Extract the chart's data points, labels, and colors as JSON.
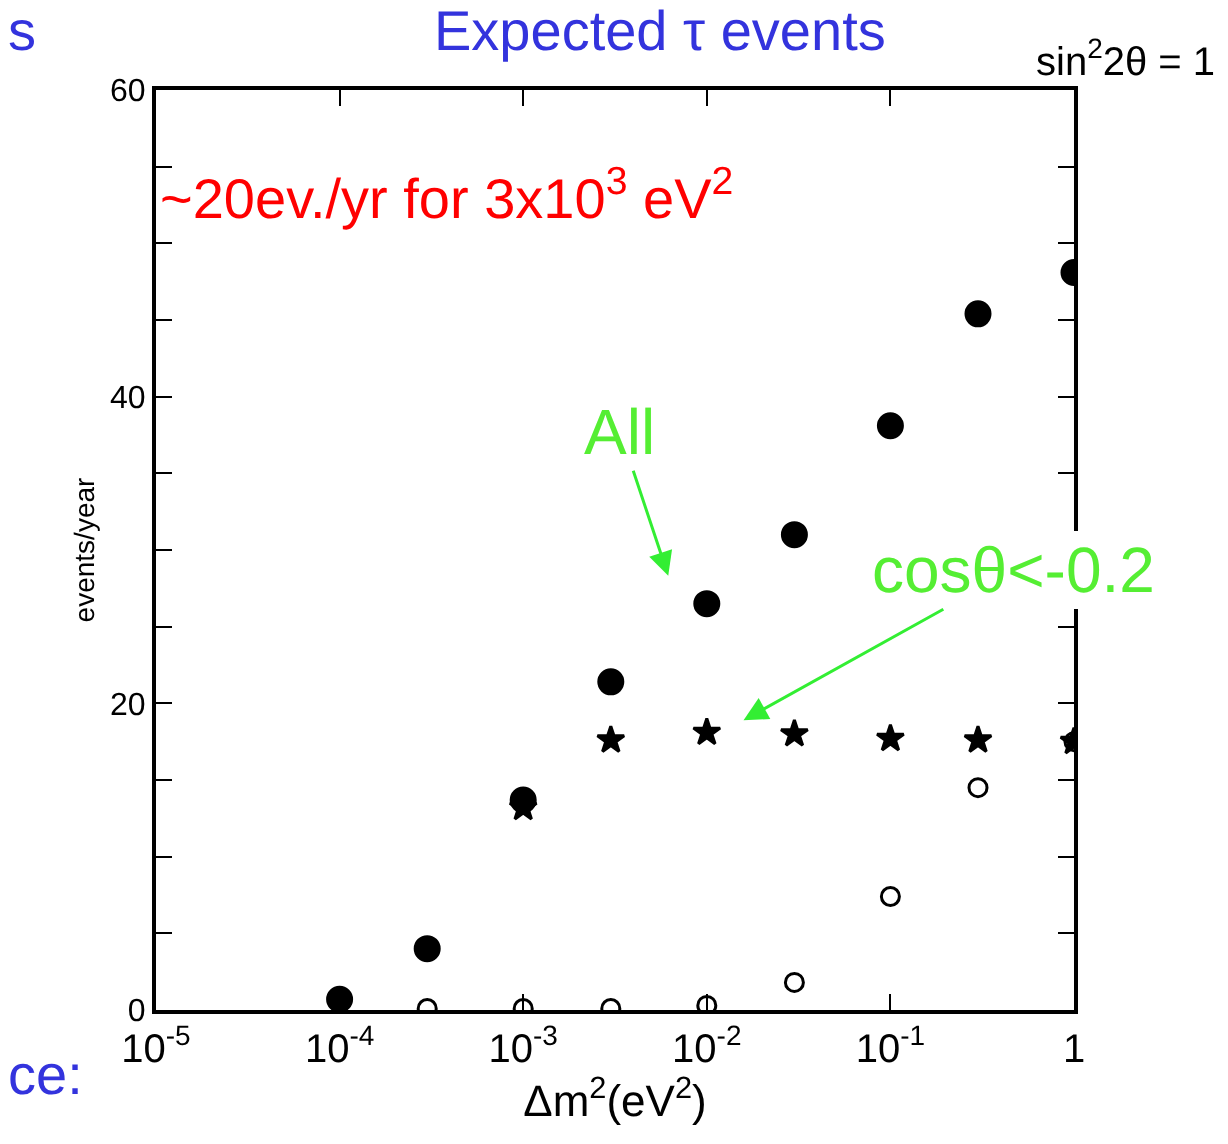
{
  "chart_data": {
    "type": "scatter",
    "title": "Expected τ events",
    "subtitle": "sin$^{2}$2θ = 1",
    "xlabel": "Δm$^{2}$(eV$^{2}$)",
    "ylabel": "events/year",
    "x": [
      0.0001,
      0.0003,
      0.001,
      0.003,
      0.01,
      0.03,
      0.1,
      0.3,
      1
    ],
    "series": [
      {
        "color": "#000000",
        "marker": "circle",
        "values": [
          0.7,
          4.0,
          13.7,
          21.4,
          26.5,
          31.0,
          38.1,
          45.4,
          48.1
        ]
      },
      {
        "color": "#000000",
        "marker": "star",
        "values": [
          null,
          null,
          13.2,
          17.6,
          18.1,
          18.0,
          17.7,
          17.6,
          17.5
        ]
      },
      {
        "color": "#000000",
        "marker": "circle-open",
        "values": [
          null,
          0.1,
          0.1,
          0.1,
          0.3,
          1.8,
          7.4,
          14.5,
          17.5
        ]
      }
    ],
    "log": "x",
    "xlim": [
      1e-05,
      1
    ],
    "xticks": [
      {
        "value": 1e-05,
        "label": "10$^{-5}$"
      },
      {
        "value": 0.0001,
        "label": "10$^{-4}$"
      },
      {
        "value": 0.001,
        "label": "10$^{-3}$"
      },
      {
        "value": 0.01,
        "label": "10$^{-2}$"
      },
      {
        "value": 0.1,
        "label": "10$^{-1}$"
      },
      1
    ],
    "ylim": [
      0,
      60
    ],
    "yticks": [
      0,
      {
        "value": 5,
        "label": null
      },
      {
        "value": 10,
        "label": null
      },
      {
        "value": 15,
        "label": null
      },
      20,
      {
        "value": 25,
        "label": null
      },
      {
        "value": 30,
        "label": null
      },
      {
        "value": 35,
        "label": null
      },
      40,
      {
        "value": 45,
        "label": null
      },
      {
        "value": 50,
        "label": null
      },
      {
        "value": 55,
        "label": null
      },
      60
    ],
    "annotations": [
      "~20ev./yr for 3x10$^{3}$ eV$^{2}$",
      "All",
      "cosθ<-0.2",
      "s",
      "ce:"
    ]
  }
}
